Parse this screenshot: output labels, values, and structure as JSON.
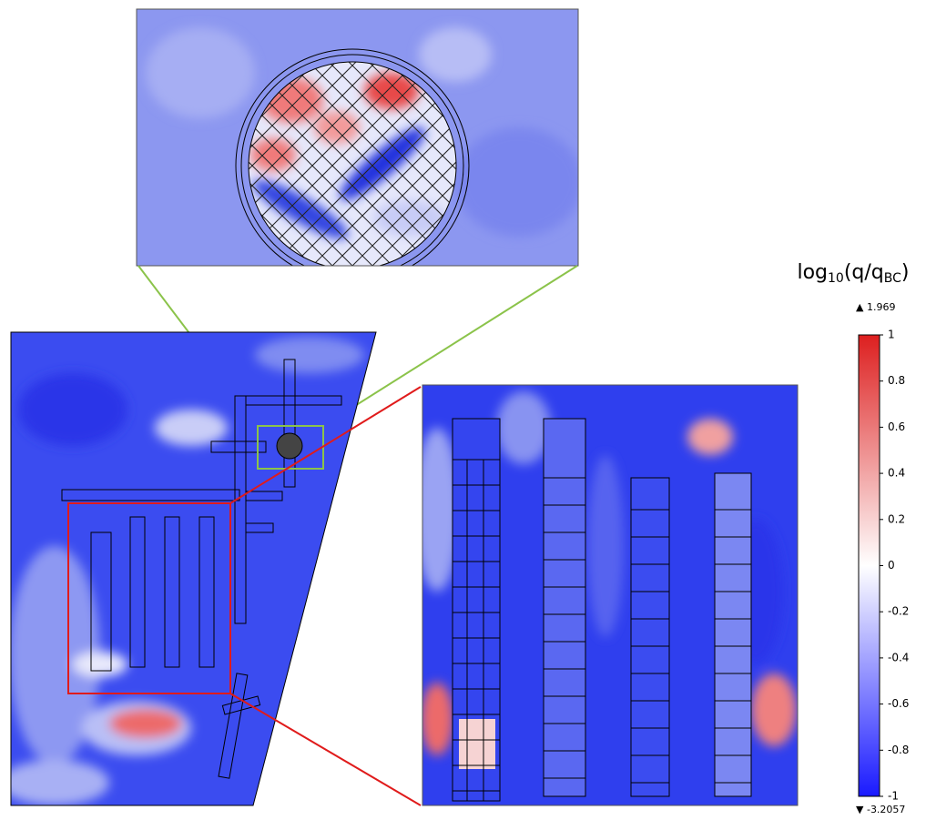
{
  "chart_data": {
    "type": "colorbar",
    "title_parts": [
      "log",
      "10",
      "(q/q",
      "BC",
      ")"
    ],
    "clim": [
      -1,
      1
    ],
    "ticks": [
      1,
      0.8,
      0.6,
      0.4,
      0.2,
      0,
      -0.2,
      -0.4,
      -0.6,
      -0.8,
      -1
    ],
    "max_value": 1.969,
    "min_value": -3.2057,
    "colors": [
      "#1a1aff",
      "#ffffff",
      "#dd1f1f"
    ]
  }
}
